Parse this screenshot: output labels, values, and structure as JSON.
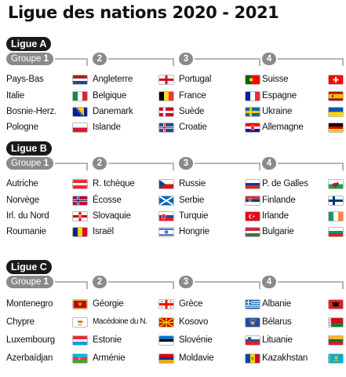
{
  "title": "Ligue des nations 2020 - 2021",
  "leagues": [
    {
      "label": "Ligue A",
      "groups": [
        {
          "label": "Groupe",
          "number": "1",
          "countries": [
            {
              "name": "Pays-Bas",
              "flag": "netherlands"
            },
            {
              "name": "Italie",
              "flag": "italy"
            },
            {
              "name": "Bosnie-Herz.",
              "flag": "bosnia"
            },
            {
              "name": "Pologne",
              "flag": "poland"
            }
          ]
        },
        {
          "number": "2",
          "countries": [
            {
              "name": "Angleterre",
              "flag": "england"
            },
            {
              "name": "Belgique",
              "flag": "belgium"
            },
            {
              "name": "Danemark",
              "flag": "denmark"
            },
            {
              "name": "Islande",
              "flag": "iceland"
            }
          ]
        },
        {
          "number": "3",
          "countries": [
            {
              "name": "Portugal",
              "flag": "portugal"
            },
            {
              "name": "France",
              "flag": "france"
            },
            {
              "name": "Suède",
              "flag": "sweden"
            },
            {
              "name": "Croatie",
              "flag": "croatia"
            }
          ]
        },
        {
          "number": "4",
          "countries": [
            {
              "name": "Suisse",
              "flag": "switzerland"
            },
            {
              "name": "Espagne",
              "flag": "spain"
            },
            {
              "name": "Ukraine",
              "flag": "ukraine"
            },
            {
              "name": "Allemagne",
              "flag": "germany"
            }
          ]
        }
      ]
    },
    {
      "label": "Ligue B",
      "groups": [
        {
          "label": "Groupe",
          "number": "1",
          "countries": [
            {
              "name": "Autriche",
              "flag": "austria"
            },
            {
              "name": "Norvège",
              "flag": "norway"
            },
            {
              "name": "Irl. du Nord",
              "flag": "northern-ireland"
            },
            {
              "name": "Roumanie",
              "flag": "romania"
            }
          ]
        },
        {
          "number": "2",
          "countries": [
            {
              "name": "R. tchèque",
              "flag": "czechia"
            },
            {
              "name": "Écosse",
              "flag": "scotland"
            },
            {
              "name": "Slovaquie",
              "flag": "slovakia"
            },
            {
              "name": "Israël",
              "flag": "israel"
            }
          ]
        },
        {
          "number": "3",
          "countries": [
            {
              "name": "Russie",
              "flag": "russia"
            },
            {
              "name": "Serbie",
              "flag": "serbia"
            },
            {
              "name": "Turquie",
              "flag": "turkey"
            },
            {
              "name": "Hongrie",
              "flag": "hungary"
            }
          ]
        },
        {
          "number": "4",
          "countries": [
            {
              "name": "P. de Galles",
              "flag": "wales"
            },
            {
              "name": "Finlande",
              "flag": "finland"
            },
            {
              "name": "Irlande",
              "flag": "ireland"
            },
            {
              "name": "Bulgarie",
              "flag": "bulgaria"
            }
          ]
        }
      ]
    },
    {
      "label": "Ligue C",
      "groups": [
        {
          "label": "Groupe",
          "number": "1",
          "countries": [
            {
              "name": "Montenegro",
              "flag": "montenegro"
            },
            {
              "name": "Chypre",
              "flag": "cyprus"
            },
            {
              "name": "Luxembourg",
              "flag": "luxembourg"
            },
            {
              "name": "Azerbaïdjan",
              "flag": "azerbaijan"
            }
          ]
        },
        {
          "number": "2",
          "countries": [
            {
              "name": "Géorgie",
              "flag": "georgia"
            },
            {
              "name": "Macédoine du N.",
              "flag": "north-macedonia"
            },
            {
              "name": "Estonie",
              "flag": "estonia"
            },
            {
              "name": "Arménie",
              "flag": "armenia"
            }
          ]
        },
        {
          "number": "3",
          "countries": [
            {
              "name": "Grèce",
              "flag": "greece"
            },
            {
              "name": "Kosovo",
              "flag": "kosovo"
            },
            {
              "name": "Slovénie",
              "flag": "slovenia"
            },
            {
              "name": "Moldavie",
              "flag": "moldova"
            }
          ]
        },
        {
          "number": "4",
          "countries": [
            {
              "name": "Albanie",
              "flag": "albania"
            },
            {
              "name": "Bélarus",
              "flag": "belarus"
            },
            {
              "name": "Lituanie",
              "flag": "lithuania"
            },
            {
              "name": "Kazakhstan",
              "flag": "kazakhstan"
            }
          ]
        }
      ]
    }
  ]
}
